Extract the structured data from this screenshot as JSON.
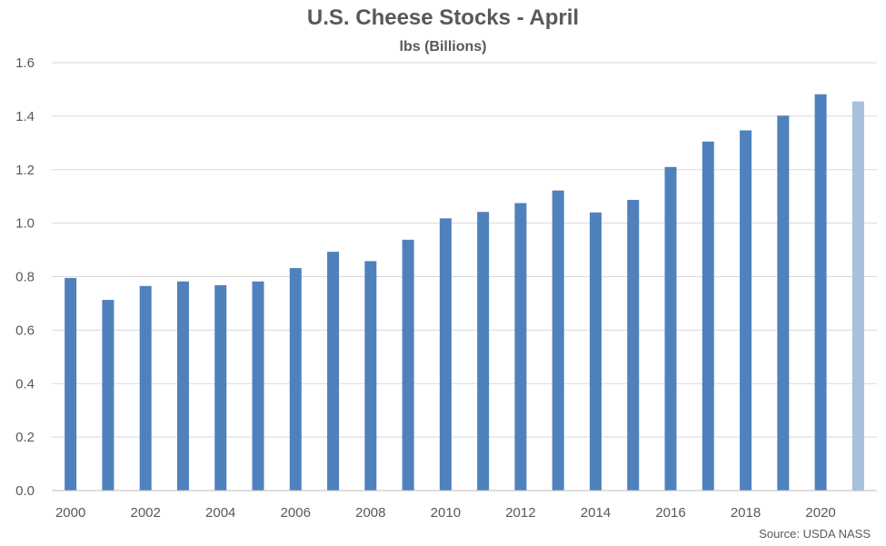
{
  "chart_data": {
    "type": "bar",
    "title": "U.S. Cheese Stocks - April",
    "subtitle": "lbs (Billions)",
    "source": "Source: USDA NASS",
    "categories": [
      "2000",
      "2001",
      "2002",
      "2003",
      "2004",
      "2005",
      "2006",
      "2007",
      "2008",
      "2009",
      "2010",
      "2011",
      "2012",
      "2013",
      "2014",
      "2015",
      "2016",
      "2017",
      "2018",
      "2019",
      "2020",
      "2021"
    ],
    "x_tick_labels": [
      "2000",
      "2002",
      "2004",
      "2006",
      "2008",
      "2010",
      "2012",
      "2014",
      "2016",
      "2018",
      "2020"
    ],
    "values": [
      0.795,
      0.713,
      0.765,
      0.782,
      0.768,
      0.782,
      0.832,
      0.893,
      0.858,
      0.938,
      1.018,
      1.042,
      1.075,
      1.122,
      1.04,
      1.087,
      1.21,
      1.305,
      1.347,
      1.402,
      1.482,
      1.455
    ],
    "ylim": [
      0,
      1.6
    ],
    "y_ticks": [
      "0.0",
      "0.2",
      "0.4",
      "0.6",
      "0.8",
      "1.0",
      "1.2",
      "1.4",
      "1.6"
    ],
    "grid": true,
    "colors": {
      "bar": "#4f81bd",
      "highlight_bar": "#a7c0dc",
      "grid": "#d9d9d9",
      "axis": "#bfbfbf"
    },
    "highlight_index": 21
  }
}
